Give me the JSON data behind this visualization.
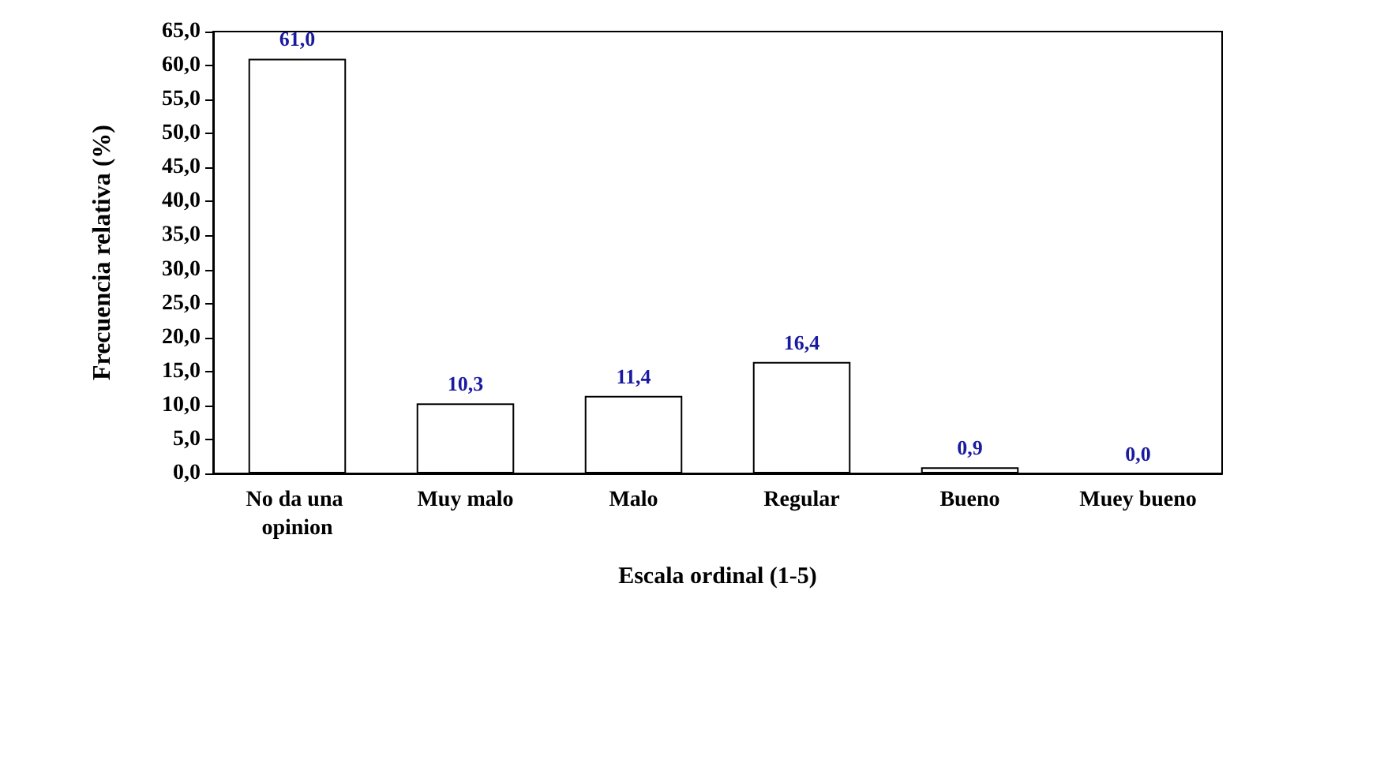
{
  "chart_data": {
    "type": "bar",
    "xlabel": "Escala ordinal (1-5)",
    "ylabel": "Frecuencia relativa (%)",
    "categories": [
      "No da una opinion",
      "Muy malo",
      "Malo",
      "Regular",
      "Bueno",
      "Muey bueno"
    ],
    "values": [
      61.0,
      10.3,
      11.4,
      16.4,
      0.9,
      0.0
    ],
    "value_labels": [
      "61,0",
      "10,3",
      "11,4",
      "16,4",
      "0,9",
      "0,0"
    ],
    "color": "#ffffff",
    "ylim": [
      0,
      65
    ],
    "yticks": [
      {
        "value": 0,
        "label": "0,0"
      },
      {
        "value": 5,
        "label": "5,0"
      },
      {
        "value": 10,
        "label": "10,0"
      },
      {
        "value": 15,
        "label": "15,0"
      },
      {
        "value": 20,
        "label": "20,0"
      },
      {
        "value": 25,
        "label": "25,0"
      },
      {
        "value": 30,
        "label": "30,0"
      },
      {
        "value": 35,
        "label": "35,0"
      },
      {
        "value": 40,
        "label": "40,0"
      },
      {
        "value": 45,
        "label": "45,0"
      },
      {
        "value": 50,
        "label": "50,0"
      },
      {
        "value": 55,
        "label": "55,0"
      },
      {
        "value": 60,
        "label": "60,0"
      },
      {
        "value": 65,
        "label": "65,0"
      }
    ],
    "grid": false
  }
}
